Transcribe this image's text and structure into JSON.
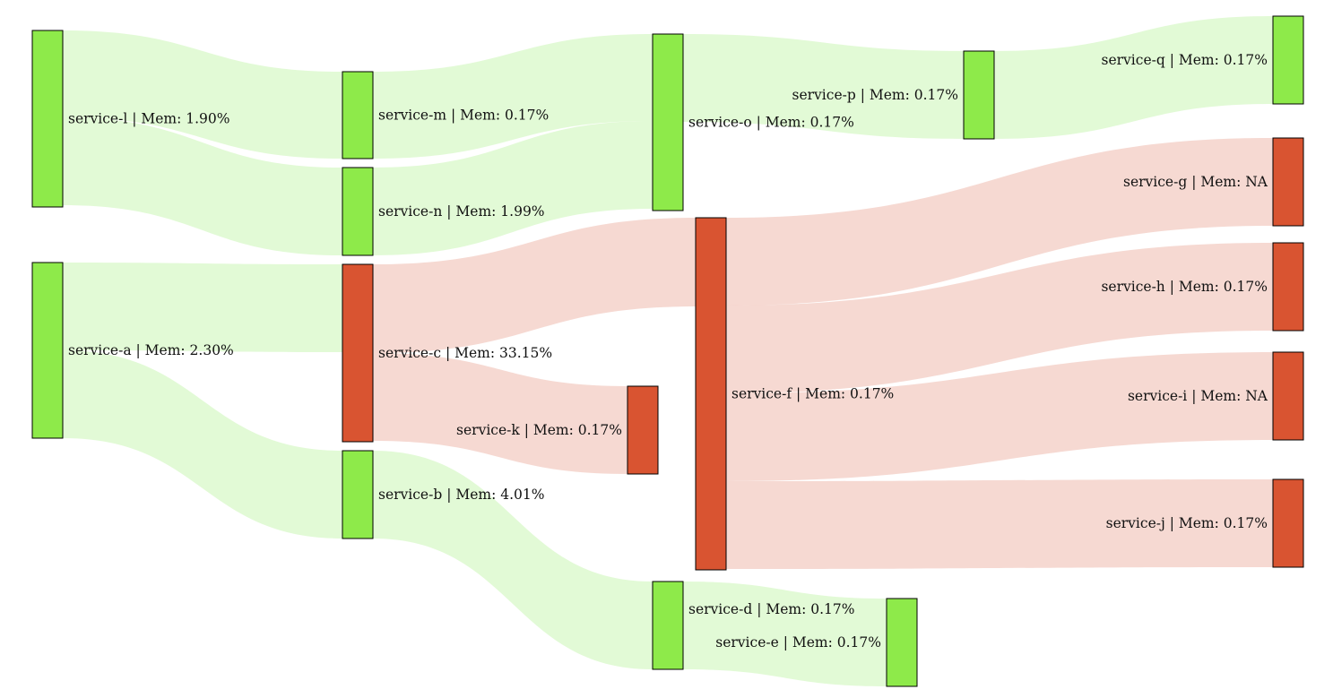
{
  "colors": {
    "healthy": "#8eea4a",
    "unhealthy": "#d95431",
    "healthy_link": "#c6f5ad",
    "unhealthy_link": "#eeb3a6"
  },
  "nodes": [
    {
      "id": "service-l",
      "label": "service-l | Mem: 1.90%",
      "status": "healthy"
    },
    {
      "id": "service-a",
      "label": "service-a | Mem: 2.30%",
      "status": "healthy"
    },
    {
      "id": "service-m",
      "label": "service-m | Mem: 0.17%",
      "status": "healthy"
    },
    {
      "id": "service-n",
      "label": "service-n | Mem: 1.99%",
      "status": "healthy"
    },
    {
      "id": "service-c",
      "label": "service-c | Mem: 33.15%",
      "status": "unhealthy"
    },
    {
      "id": "service-b",
      "label": "service-b | Mem: 4.01%",
      "status": "healthy"
    },
    {
      "id": "service-o",
      "label": "service-o | Mem: 0.17%",
      "status": "healthy"
    },
    {
      "id": "service-k",
      "label": "service-k | Mem: 0.17%",
      "status": "unhealthy"
    },
    {
      "id": "service-f",
      "label": "service-f | Mem: 0.17%",
      "status": "unhealthy"
    },
    {
      "id": "service-d",
      "label": "service-d | Mem: 0.17%",
      "status": "healthy"
    },
    {
      "id": "service-e",
      "label": "service-e | Mem: 0.17%",
      "status": "healthy"
    },
    {
      "id": "service-p",
      "label": "service-p | Mem: 0.17%",
      "status": "healthy"
    },
    {
      "id": "service-q",
      "label": "service-q | Mem: 0.17%",
      "status": "healthy"
    },
    {
      "id": "service-g",
      "label": "service-g | Mem: NA",
      "status": "unhealthy"
    },
    {
      "id": "service-h",
      "label": "service-h | Mem: 0.17%",
      "status": "unhealthy"
    },
    {
      "id": "service-i",
      "label": "service-i | Mem: NA",
      "status": "unhealthy"
    },
    {
      "id": "service-j",
      "label": "service-j | Mem: 0.17%",
      "status": "unhealthy"
    }
  ],
  "links": [
    {
      "source": "service-l",
      "target": "service-m",
      "status": "healthy"
    },
    {
      "source": "service-l",
      "target": "service-n",
      "status": "healthy"
    },
    {
      "source": "service-m",
      "target": "service-o",
      "status": "healthy"
    },
    {
      "source": "service-n",
      "target": "service-o",
      "status": "healthy"
    },
    {
      "source": "service-o",
      "target": "service-p",
      "status": "healthy"
    },
    {
      "source": "service-p",
      "target": "service-q",
      "status": "healthy"
    },
    {
      "source": "service-a",
      "target": "service-c",
      "status": "healthy"
    },
    {
      "source": "service-a",
      "target": "service-b",
      "status": "healthy"
    },
    {
      "source": "service-c",
      "target": "service-f",
      "status": "unhealthy"
    },
    {
      "source": "service-c",
      "target": "service-k",
      "status": "unhealthy"
    },
    {
      "source": "service-b",
      "target": "service-d",
      "status": "healthy"
    },
    {
      "source": "service-d",
      "target": "service-e",
      "status": "healthy"
    },
    {
      "source": "service-f",
      "target": "service-g",
      "status": "unhealthy"
    },
    {
      "source": "service-f",
      "target": "service-h",
      "status": "unhealthy"
    },
    {
      "source": "service-f",
      "target": "service-i",
      "status": "unhealthy"
    },
    {
      "source": "service-f",
      "target": "service-j",
      "status": "unhealthy"
    }
  ]
}
